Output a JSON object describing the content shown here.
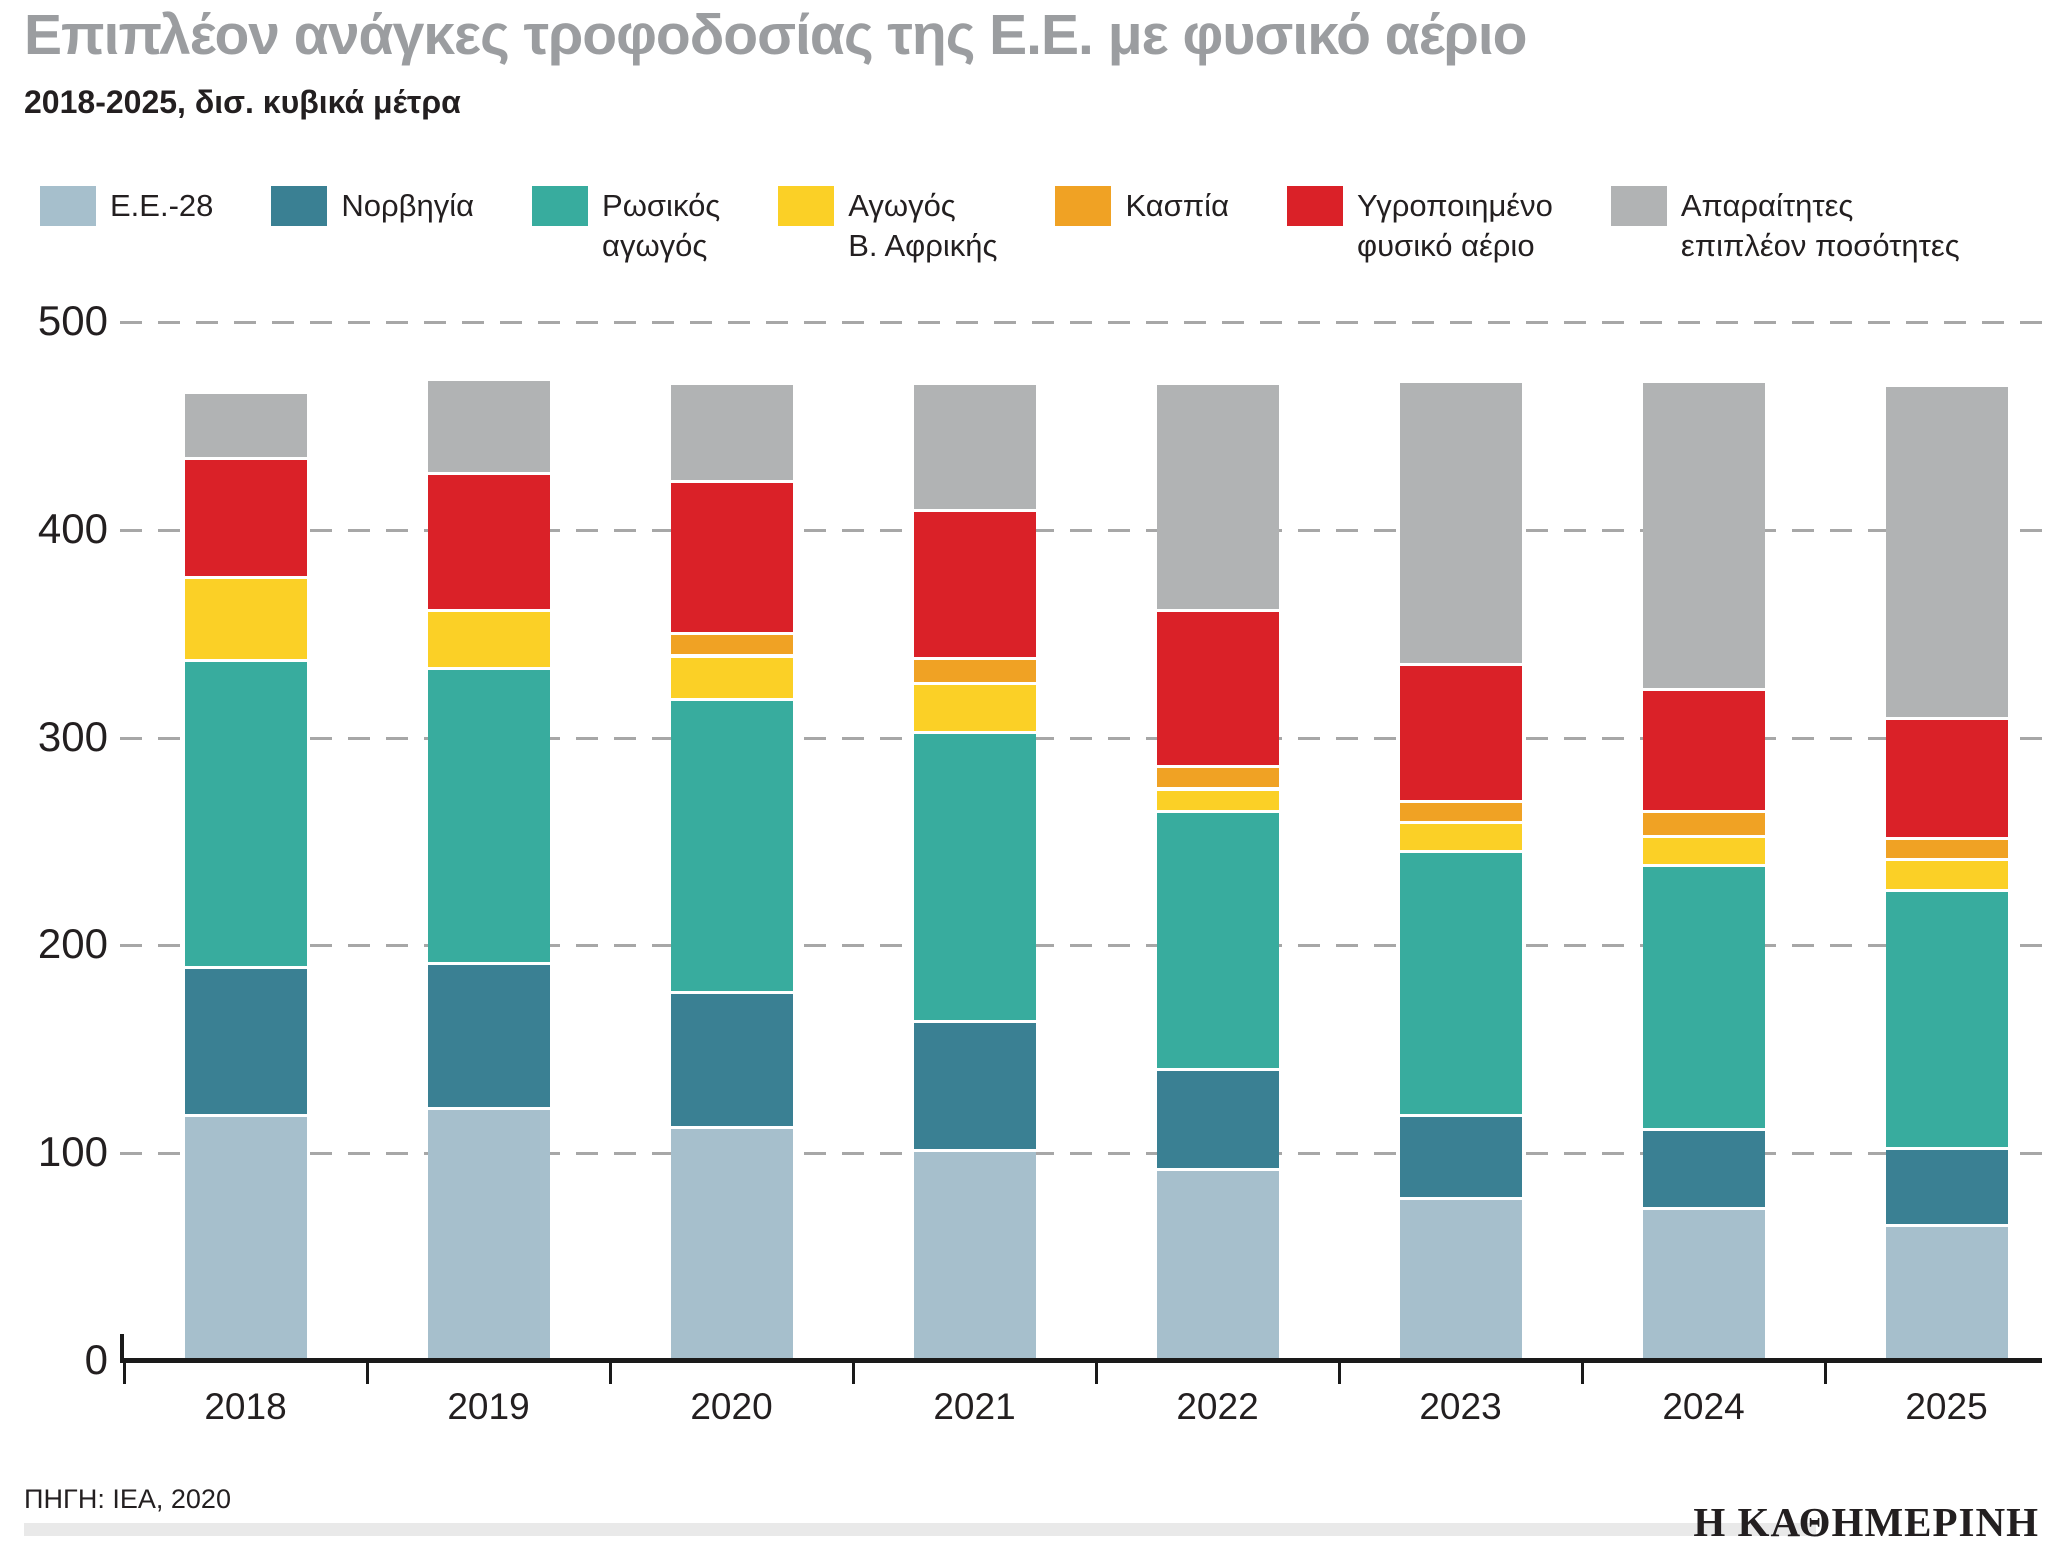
{
  "header": {
    "title": "Επιπλέον ανάγκες τροφοδοσίας της Ε.Ε. με φυσικό αέριο",
    "subtitle": "2018-2025, δισ. κυβικά μέτρα"
  },
  "chart_data": {
    "type": "bar",
    "stacked": true,
    "title": "Επιπλέον ανάγκες τροφοδοσίας της Ε.Ε. με φυσικό αέριο",
    "subtitle": "2018-2025, δισ. κυβικά μέτρα",
    "unit": "δισ. κυβικά μέτρα",
    "categories": [
      "2018",
      "2019",
      "2020",
      "2021",
      "2022",
      "2023",
      "2024",
      "2025"
    ],
    "series": [
      {
        "name": "Ε.Ε.-28",
        "label_lines": [
          "Ε.Ε.-28"
        ],
        "color": "#a6bfcc",
        "values": [
          119,
          122,
          113,
          102,
          93,
          79,
          74,
          66
        ]
      },
      {
        "name": "Νορβηγία",
        "label_lines": [
          "Νορβηγία"
        ],
        "color": "#3a8093",
        "values": [
          71,
          70,
          65,
          62,
          48,
          40,
          38,
          37
        ]
      },
      {
        "name": "Ρωσικός αγωγός",
        "label_lines": [
          "Ρωσικός",
          "αγωγός"
        ],
        "color": "#38ac9e",
        "values": [
          148,
          142,
          141,
          139,
          124,
          127,
          127,
          124
        ]
      },
      {
        "name": "Αγωγός Β. Αφρικής",
        "label_lines": [
          "Αγωγός",
          "Β. Αφρικής"
        ],
        "color": "#fbd026",
        "values": [
          40,
          28,
          21,
          24,
          11,
          14,
          14,
          15
        ]
      },
      {
        "name": "Κασπία",
        "label_lines": [
          "Κασπία"
        ],
        "color": "#f0a224",
        "values": [
          0,
          0,
          11,
          12,
          11,
          10,
          12,
          10
        ]
      },
      {
        "name": "Υγροποιημένο φυσικό αέριο",
        "label_lines": [
          "Υγροποιημένο",
          "φυσικό αέριο"
        ],
        "color": "#da2128",
        "values": [
          57,
          66,
          73,
          71,
          75,
          66,
          59,
          58
        ]
      },
      {
        "name": "Απαραίτητες επιπλέον ποσότητες",
        "label_lines": [
          "Απαραίτητες",
          "επιπλέον ποσότητες"
        ],
        "color": "#b1b3b4",
        "values": [
          32,
          45,
          47,
          61,
          109,
          136,
          148,
          160
        ]
      }
    ],
    "totals": [
      467,
      473,
      471,
      471,
      471,
      472,
      472,
      470
    ],
    "ylim": [
      0,
      500
    ],
    "yticks": [
      0,
      100,
      200,
      300,
      400,
      500
    ],
    "grid": "horizontal-dashed",
    "legend_position": "top",
    "colors": {
      "title_gray": "#9b9da0",
      "text_dark": "#231f20",
      "gridline": "#a7a7a7",
      "axis": "#1a1a1a",
      "footer_bar": "#e9e9e9"
    }
  },
  "footer": {
    "source": "ΠΗΓΗ: IEA, 2020",
    "logo": "Η ΚΑΘΗΜΕΡΙΝΗ"
  }
}
